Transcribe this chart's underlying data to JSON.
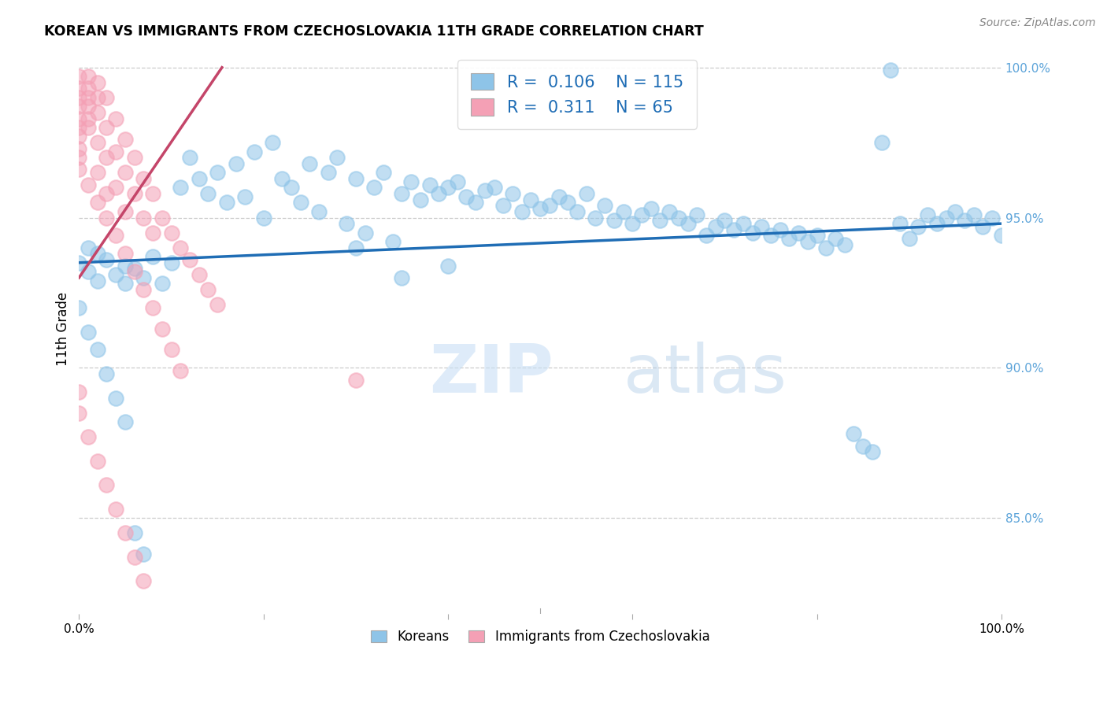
{
  "title": "KOREAN VS IMMIGRANTS FROM CZECHOSLOVAKIA 11TH GRADE CORRELATION CHART",
  "source": "Source: ZipAtlas.com",
  "ylabel": "11th Grade",
  "watermark_zip": "ZIP",
  "watermark_atlas": "atlas",
  "legend_r1": "0.106",
  "legend_n1": "115",
  "legend_r2": "0.311",
  "legend_n2": "65",
  "blue_color": "#8ec4e8",
  "blue_line_color": "#1f6db5",
  "pink_color": "#f4a0b5",
  "pink_line_color": "#c44569",
  "legend_text_color": "#1f6db5",
  "right_axis_color": "#5ba3d9",
  "xmin": 0.0,
  "xmax": 1.0,
  "ymin": 0.818,
  "ymax": 1.008,
  "right_yticks": [
    0.85,
    0.9,
    0.95,
    1.0
  ],
  "right_yticklabels": [
    "85.0%",
    "90.0%",
    "95.0%",
    "100.0%"
  ],
  "blue_scatter_x": [
    0.0,
    0.01,
    0.01,
    0.02,
    0.02,
    0.03,
    0.04,
    0.05,
    0.05,
    0.06,
    0.07,
    0.08,
    0.09,
    0.1,
    0.11,
    0.12,
    0.13,
    0.14,
    0.15,
    0.16,
    0.17,
    0.18,
    0.19,
    0.2,
    0.21,
    0.22,
    0.23,
    0.24,
    0.25,
    0.26,
    0.27,
    0.28,
    0.29,
    0.3,
    0.31,
    0.32,
    0.33,
    0.34,
    0.35,
    0.36,
    0.37,
    0.38,
    0.39,
    0.4,
    0.41,
    0.42,
    0.43,
    0.44,
    0.45,
    0.46,
    0.47,
    0.48,
    0.49,
    0.5,
    0.51,
    0.52,
    0.53,
    0.54,
    0.55,
    0.56,
    0.57,
    0.58,
    0.59,
    0.6,
    0.61,
    0.62,
    0.63,
    0.64,
    0.65,
    0.66,
    0.67,
    0.68,
    0.69,
    0.7,
    0.71,
    0.72,
    0.73,
    0.74,
    0.75,
    0.76,
    0.77,
    0.78,
    0.79,
    0.8,
    0.81,
    0.82,
    0.83,
    0.84,
    0.85,
    0.86,
    0.87,
    0.88,
    0.89,
    0.9,
    0.91,
    0.92,
    0.93,
    0.94,
    0.95,
    0.96,
    0.97,
    0.98,
    0.99,
    1.0,
    0.0,
    0.01,
    0.02,
    0.03,
    0.04,
    0.05,
    0.06,
    0.07,
    0.3,
    0.35,
    0.4
  ],
  "blue_scatter_y": [
    0.935,
    0.94,
    0.932,
    0.938,
    0.929,
    0.936,
    0.931,
    0.934,
    0.928,
    0.933,
    0.93,
    0.937,
    0.928,
    0.935,
    0.96,
    0.97,
    0.963,
    0.958,
    0.965,
    0.955,
    0.968,
    0.957,
    0.972,
    0.95,
    0.975,
    0.963,
    0.96,
    0.955,
    0.968,
    0.952,
    0.965,
    0.97,
    0.948,
    0.963,
    0.945,
    0.96,
    0.965,
    0.942,
    0.958,
    0.962,
    0.956,
    0.961,
    0.958,
    0.96,
    0.962,
    0.957,
    0.955,
    0.959,
    0.96,
    0.954,
    0.958,
    0.952,
    0.956,
    0.953,
    0.954,
    0.957,
    0.955,
    0.952,
    0.958,
    0.95,
    0.954,
    0.949,
    0.952,
    0.948,
    0.951,
    0.953,
    0.949,
    0.952,
    0.95,
    0.948,
    0.951,
    0.944,
    0.947,
    0.949,
    0.946,
    0.948,
    0.945,
    0.947,
    0.944,
    0.946,
    0.943,
    0.945,
    0.942,
    0.944,
    0.94,
    0.943,
    0.941,
    0.878,
    0.874,
    0.872,
    0.975,
    0.999,
    0.948,
    0.943,
    0.947,
    0.951,
    0.948,
    0.95,
    0.952,
    0.949,
    0.951,
    0.947,
    0.95,
    0.944,
    0.92,
    0.912,
    0.906,
    0.898,
    0.89,
    0.882,
    0.845,
    0.838,
    0.94,
    0.93,
    0.934
  ],
  "pink_scatter_x": [
    0.0,
    0.0,
    0.0,
    0.0,
    0.0,
    0.0,
    0.0,
    0.0,
    0.0,
    0.01,
    0.01,
    0.01,
    0.01,
    0.01,
    0.01,
    0.02,
    0.02,
    0.02,
    0.02,
    0.02,
    0.03,
    0.03,
    0.03,
    0.03,
    0.04,
    0.04,
    0.04,
    0.05,
    0.05,
    0.05,
    0.06,
    0.06,
    0.07,
    0.07,
    0.08,
    0.08,
    0.09,
    0.1,
    0.11,
    0.12,
    0.13,
    0.14,
    0.15,
    0.0,
    0.01,
    0.02,
    0.03,
    0.04,
    0.05,
    0.06,
    0.07,
    0.08,
    0.09,
    0.1,
    0.11,
    0.0,
    0.0,
    0.01,
    0.02,
    0.03,
    0.04,
    0.05,
    0.06,
    0.07,
    0.3
  ],
  "pink_scatter_y": [
    0.997,
    0.993,
    0.99,
    0.987,
    0.983,
    0.98,
    0.977,
    0.973,
    0.97,
    0.997,
    0.993,
    0.99,
    0.987,
    0.983,
    0.98,
    0.995,
    0.99,
    0.985,
    0.975,
    0.965,
    0.99,
    0.98,
    0.97,
    0.958,
    0.983,
    0.972,
    0.96,
    0.976,
    0.965,
    0.952,
    0.97,
    0.958,
    0.963,
    0.95,
    0.958,
    0.945,
    0.95,
    0.945,
    0.94,
    0.936,
    0.931,
    0.926,
    0.921,
    0.966,
    0.961,
    0.955,
    0.95,
    0.944,
    0.938,
    0.932,
    0.926,
    0.92,
    0.913,
    0.906,
    0.899,
    0.892,
    0.885,
    0.877,
    0.869,
    0.861,
    0.853,
    0.845,
    0.837,
    0.829,
    0.896
  ],
  "blue_trend_x": [
    0.0,
    1.0
  ],
  "blue_trend_y": [
    0.935,
    0.948
  ],
  "pink_trend_x": [
    0.0,
    0.155
  ],
  "pink_trend_y": [
    0.93,
    1.0
  ]
}
